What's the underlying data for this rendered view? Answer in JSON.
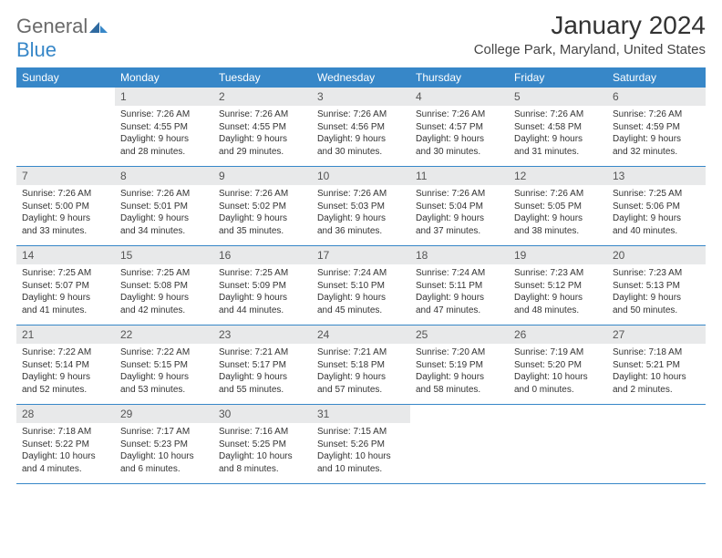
{
  "logo": {
    "general": "General",
    "blue": "Blue"
  },
  "title": "January 2024",
  "location": "College Park, Maryland, United States",
  "colors": {
    "header_bg": "#3787c8",
    "daynum_bg": "#e8e9ea",
    "text": "#333333",
    "logo_gray": "#6a6a6a",
    "logo_blue": "#3787c8"
  },
  "daynames": [
    "Sunday",
    "Monday",
    "Tuesday",
    "Wednesday",
    "Thursday",
    "Friday",
    "Saturday"
  ],
  "weeks": [
    [
      {
        "empty": true
      },
      {
        "num": "1",
        "sunrise": "Sunrise: 7:26 AM",
        "sunset": "Sunset: 4:55 PM",
        "day1": "Daylight: 9 hours",
        "day2": "and 28 minutes."
      },
      {
        "num": "2",
        "sunrise": "Sunrise: 7:26 AM",
        "sunset": "Sunset: 4:55 PM",
        "day1": "Daylight: 9 hours",
        "day2": "and 29 minutes."
      },
      {
        "num": "3",
        "sunrise": "Sunrise: 7:26 AM",
        "sunset": "Sunset: 4:56 PM",
        "day1": "Daylight: 9 hours",
        "day2": "and 30 minutes."
      },
      {
        "num": "4",
        "sunrise": "Sunrise: 7:26 AM",
        "sunset": "Sunset: 4:57 PM",
        "day1": "Daylight: 9 hours",
        "day2": "and 30 minutes."
      },
      {
        "num": "5",
        "sunrise": "Sunrise: 7:26 AM",
        "sunset": "Sunset: 4:58 PM",
        "day1": "Daylight: 9 hours",
        "day2": "and 31 minutes."
      },
      {
        "num": "6",
        "sunrise": "Sunrise: 7:26 AM",
        "sunset": "Sunset: 4:59 PM",
        "day1": "Daylight: 9 hours",
        "day2": "and 32 minutes."
      }
    ],
    [
      {
        "num": "7",
        "sunrise": "Sunrise: 7:26 AM",
        "sunset": "Sunset: 5:00 PM",
        "day1": "Daylight: 9 hours",
        "day2": "and 33 minutes."
      },
      {
        "num": "8",
        "sunrise": "Sunrise: 7:26 AM",
        "sunset": "Sunset: 5:01 PM",
        "day1": "Daylight: 9 hours",
        "day2": "and 34 minutes."
      },
      {
        "num": "9",
        "sunrise": "Sunrise: 7:26 AM",
        "sunset": "Sunset: 5:02 PM",
        "day1": "Daylight: 9 hours",
        "day2": "and 35 minutes."
      },
      {
        "num": "10",
        "sunrise": "Sunrise: 7:26 AM",
        "sunset": "Sunset: 5:03 PM",
        "day1": "Daylight: 9 hours",
        "day2": "and 36 minutes."
      },
      {
        "num": "11",
        "sunrise": "Sunrise: 7:26 AM",
        "sunset": "Sunset: 5:04 PM",
        "day1": "Daylight: 9 hours",
        "day2": "and 37 minutes."
      },
      {
        "num": "12",
        "sunrise": "Sunrise: 7:26 AM",
        "sunset": "Sunset: 5:05 PM",
        "day1": "Daylight: 9 hours",
        "day2": "and 38 minutes."
      },
      {
        "num": "13",
        "sunrise": "Sunrise: 7:25 AM",
        "sunset": "Sunset: 5:06 PM",
        "day1": "Daylight: 9 hours",
        "day2": "and 40 minutes."
      }
    ],
    [
      {
        "num": "14",
        "sunrise": "Sunrise: 7:25 AM",
        "sunset": "Sunset: 5:07 PM",
        "day1": "Daylight: 9 hours",
        "day2": "and 41 minutes."
      },
      {
        "num": "15",
        "sunrise": "Sunrise: 7:25 AM",
        "sunset": "Sunset: 5:08 PM",
        "day1": "Daylight: 9 hours",
        "day2": "and 42 minutes."
      },
      {
        "num": "16",
        "sunrise": "Sunrise: 7:25 AM",
        "sunset": "Sunset: 5:09 PM",
        "day1": "Daylight: 9 hours",
        "day2": "and 44 minutes."
      },
      {
        "num": "17",
        "sunrise": "Sunrise: 7:24 AM",
        "sunset": "Sunset: 5:10 PM",
        "day1": "Daylight: 9 hours",
        "day2": "and 45 minutes."
      },
      {
        "num": "18",
        "sunrise": "Sunrise: 7:24 AM",
        "sunset": "Sunset: 5:11 PM",
        "day1": "Daylight: 9 hours",
        "day2": "and 47 minutes."
      },
      {
        "num": "19",
        "sunrise": "Sunrise: 7:23 AM",
        "sunset": "Sunset: 5:12 PM",
        "day1": "Daylight: 9 hours",
        "day2": "and 48 minutes."
      },
      {
        "num": "20",
        "sunrise": "Sunrise: 7:23 AM",
        "sunset": "Sunset: 5:13 PM",
        "day1": "Daylight: 9 hours",
        "day2": "and 50 minutes."
      }
    ],
    [
      {
        "num": "21",
        "sunrise": "Sunrise: 7:22 AM",
        "sunset": "Sunset: 5:14 PM",
        "day1": "Daylight: 9 hours",
        "day2": "and 52 minutes."
      },
      {
        "num": "22",
        "sunrise": "Sunrise: 7:22 AM",
        "sunset": "Sunset: 5:15 PM",
        "day1": "Daylight: 9 hours",
        "day2": "and 53 minutes."
      },
      {
        "num": "23",
        "sunrise": "Sunrise: 7:21 AM",
        "sunset": "Sunset: 5:17 PM",
        "day1": "Daylight: 9 hours",
        "day2": "and 55 minutes."
      },
      {
        "num": "24",
        "sunrise": "Sunrise: 7:21 AM",
        "sunset": "Sunset: 5:18 PM",
        "day1": "Daylight: 9 hours",
        "day2": "and 57 minutes."
      },
      {
        "num": "25",
        "sunrise": "Sunrise: 7:20 AM",
        "sunset": "Sunset: 5:19 PM",
        "day1": "Daylight: 9 hours",
        "day2": "and 58 minutes."
      },
      {
        "num": "26",
        "sunrise": "Sunrise: 7:19 AM",
        "sunset": "Sunset: 5:20 PM",
        "day1": "Daylight: 10 hours",
        "day2": "and 0 minutes."
      },
      {
        "num": "27",
        "sunrise": "Sunrise: 7:18 AM",
        "sunset": "Sunset: 5:21 PM",
        "day1": "Daylight: 10 hours",
        "day2": "and 2 minutes."
      }
    ],
    [
      {
        "num": "28",
        "sunrise": "Sunrise: 7:18 AM",
        "sunset": "Sunset: 5:22 PM",
        "day1": "Daylight: 10 hours",
        "day2": "and 4 minutes."
      },
      {
        "num": "29",
        "sunrise": "Sunrise: 7:17 AM",
        "sunset": "Sunset: 5:23 PM",
        "day1": "Daylight: 10 hours",
        "day2": "and 6 minutes."
      },
      {
        "num": "30",
        "sunrise": "Sunrise: 7:16 AM",
        "sunset": "Sunset: 5:25 PM",
        "day1": "Daylight: 10 hours",
        "day2": "and 8 minutes."
      },
      {
        "num": "31",
        "sunrise": "Sunrise: 7:15 AM",
        "sunset": "Sunset: 5:26 PM",
        "day1": "Daylight: 10 hours",
        "day2": "and 10 minutes."
      },
      {
        "empty": true
      },
      {
        "empty": true
      },
      {
        "empty": true
      }
    ]
  ]
}
